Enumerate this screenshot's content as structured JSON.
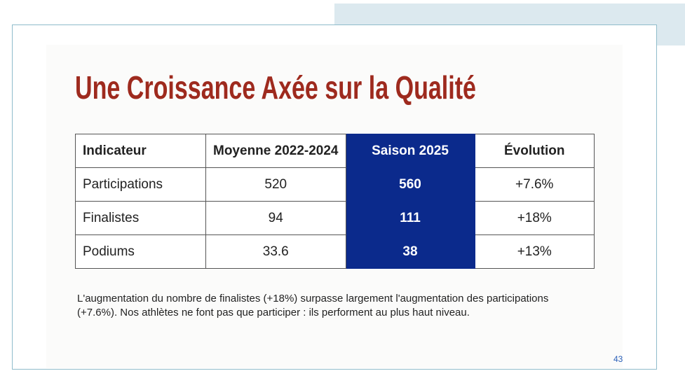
{
  "title": "Une Croissance Axée sur la Qualité",
  "table": {
    "headers": [
      "Indicateur",
      "Moyenne 2022-2024",
      "Saison 2025",
      "Évolution"
    ],
    "rows": [
      [
        "Participations",
        "520",
        "560",
        "+7.6%"
      ],
      [
        "Finalistes",
        "94",
        "111",
        "+18%"
      ],
      [
        "Podiums",
        "33.6",
        "38",
        "+13%"
      ]
    ]
  },
  "note": "L'augmentation du nombre de finalistes (+18%) surpasse largement l'augmentation des participations (+7.6%). Nos athlètes ne font pas que participer : ils performent au plus haut niveau.",
  "page_number": "43"
}
